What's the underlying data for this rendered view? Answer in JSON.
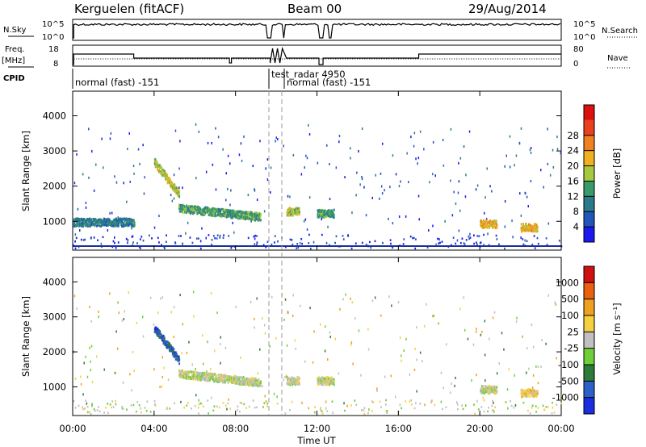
{
  "header": {
    "station": "Kerguelen (fitACF)",
    "beam": "Beam 00",
    "date": "29/Aug/2014"
  },
  "panels": {
    "nsky_label": "N.Sky",
    "nsky_ticks": [
      "10^5",
      "10^0"
    ],
    "nsearch_label": "N.Search",
    "nsearch_ticks": [
      "10^5",
      "10^0"
    ],
    "freq_label_1": "Freq.",
    "freq_label_2": "[MHz]",
    "freq_ticks": [
      "18",
      "8"
    ],
    "nave_label": "Nave",
    "nave_ticks": [
      "80",
      "0"
    ],
    "cpid_label": "CPID",
    "cpid_segments": [
      "normal (fast) -151",
      "test_radar 4950",
      "normal (fast) -151"
    ]
  },
  "colors": {
    "power_scale": [
      "#1a1aee",
      "#2255bb",
      "#2a7a8a",
      "#3a9a6a",
      "#a8c840",
      "#f0b020",
      "#f08020",
      "#e84020",
      "#dd1010"
    ],
    "velocity_scale": [
      "#1a2ee0",
      "#2d5fc8",
      "#2e7a3a",
      "#6fcf3a",
      "#c0c0c0",
      "#f5d040",
      "#f0a020",
      "#e86010",
      "#d01010"
    ]
  },
  "chart_data": [
    {
      "type": "heatmap",
      "name": "power",
      "xlabel": "Time UT",
      "ylabel": "Slant Range [km]",
      "x_range_hours": [
        0,
        24
      ],
      "ylim": [
        180,
        4700
      ],
      "yticks": [
        1000,
        2000,
        3000,
        4000
      ],
      "colorbar_label": "Power [dB]",
      "colorbar_ticks": [
        "4",
        "8",
        "12",
        "16",
        "20",
        "24",
        "28"
      ],
      "features": [
        {
          "x_start": 0.0,
          "x_end": 3.0,
          "range_km": 1000,
          "level": 2
        },
        {
          "x_start": 4.0,
          "x_end": 5.2,
          "range_km_start": 2700,
          "range_km_end": 1800,
          "level": 4
        },
        {
          "x_start": 5.2,
          "x_end": 9.2,
          "range_km_start": 1400,
          "range_km_end": 1150,
          "level": 3
        },
        {
          "x_start": 10.5,
          "x_end": 11.1,
          "range_km": 1300,
          "level": 4
        },
        {
          "x_start": 12.0,
          "x_end": 12.8,
          "range_km": 1250,
          "level": 3
        },
        {
          "x_start": 20.0,
          "x_end": 20.8,
          "range_km": 950,
          "level": 5
        },
        {
          "x_start": 22.0,
          "x_end": 22.8,
          "range_km": 850,
          "level": 5
        }
      ]
    },
    {
      "type": "heatmap",
      "name": "velocity",
      "xlabel": "Time UT",
      "ylabel": "Slant Range [km]",
      "x_range_hours": [
        0,
        24
      ],
      "ylim": [
        180,
        4700
      ],
      "yticks": [
        1000,
        2000,
        3000,
        4000
      ],
      "colorbar_label": "Velocity [m s⁻¹]",
      "colorbar_ticks": [
        "1000",
        "500",
        "100",
        "25",
        "-25",
        "-100",
        "-500",
        "-1000"
      ],
      "features": [
        {
          "x_start": 4.0,
          "x_end": 5.2,
          "range_km_start": 2700,
          "range_km_end": 1800,
          "level": 1
        },
        {
          "x_start": 5.2,
          "x_end": 9.2,
          "range_km_start": 1400,
          "range_km_end": 1150,
          "level": 4
        },
        {
          "x_start": 10.5,
          "x_end": 11.1,
          "range_km": 1200,
          "level": 4
        },
        {
          "x_start": 12.0,
          "x_end": 12.8,
          "range_km": 1200,
          "level": 4
        },
        {
          "x_start": 20.0,
          "x_end": 20.8,
          "range_km": 950,
          "level": 4
        },
        {
          "x_start": 22.0,
          "x_end": 22.8,
          "range_km": 850,
          "level": 5
        }
      ]
    }
  ],
  "xticks": [
    "00:00",
    "04:00",
    "08:00",
    "12:00",
    "16:00",
    "20:00",
    "00:00"
  ],
  "xlabel": "Time UT"
}
